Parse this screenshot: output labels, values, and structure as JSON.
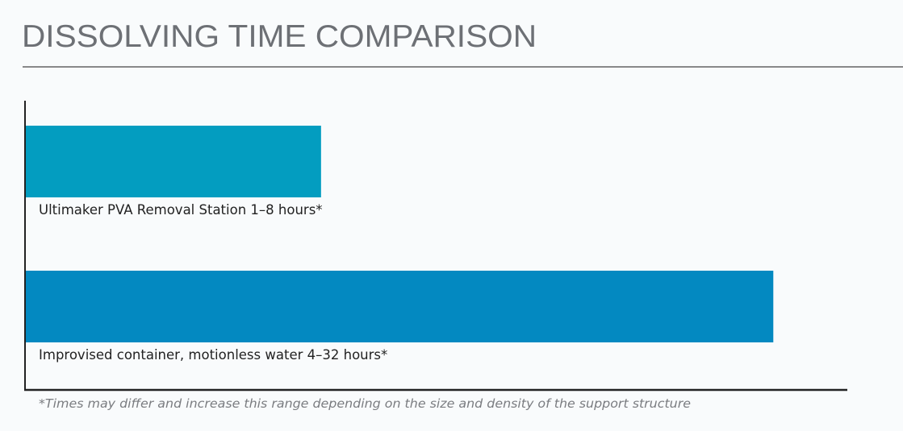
{
  "chart_data": {
    "type": "bar",
    "orientation": "horizontal",
    "title": "DISSOLVING TIME COMPARISON",
    "categories": [
      "Ultimaker PVA Removal Station 1–8 hours*",
      "Improvised container, motionless water 4–32 hours*"
    ],
    "ranges_hours": [
      [
        1,
        8
      ],
      [
        4,
        32
      ]
    ],
    "bar_fill": [
      0.36,
      0.91
    ],
    "colors": [
      "#039dc0",
      "#0389c1"
    ],
    "footnote": "*Times may differ and increase this range depending on the size and density of the support structure",
    "xlabel": "",
    "ylabel": "",
    "grid": false,
    "legend": "none"
  }
}
